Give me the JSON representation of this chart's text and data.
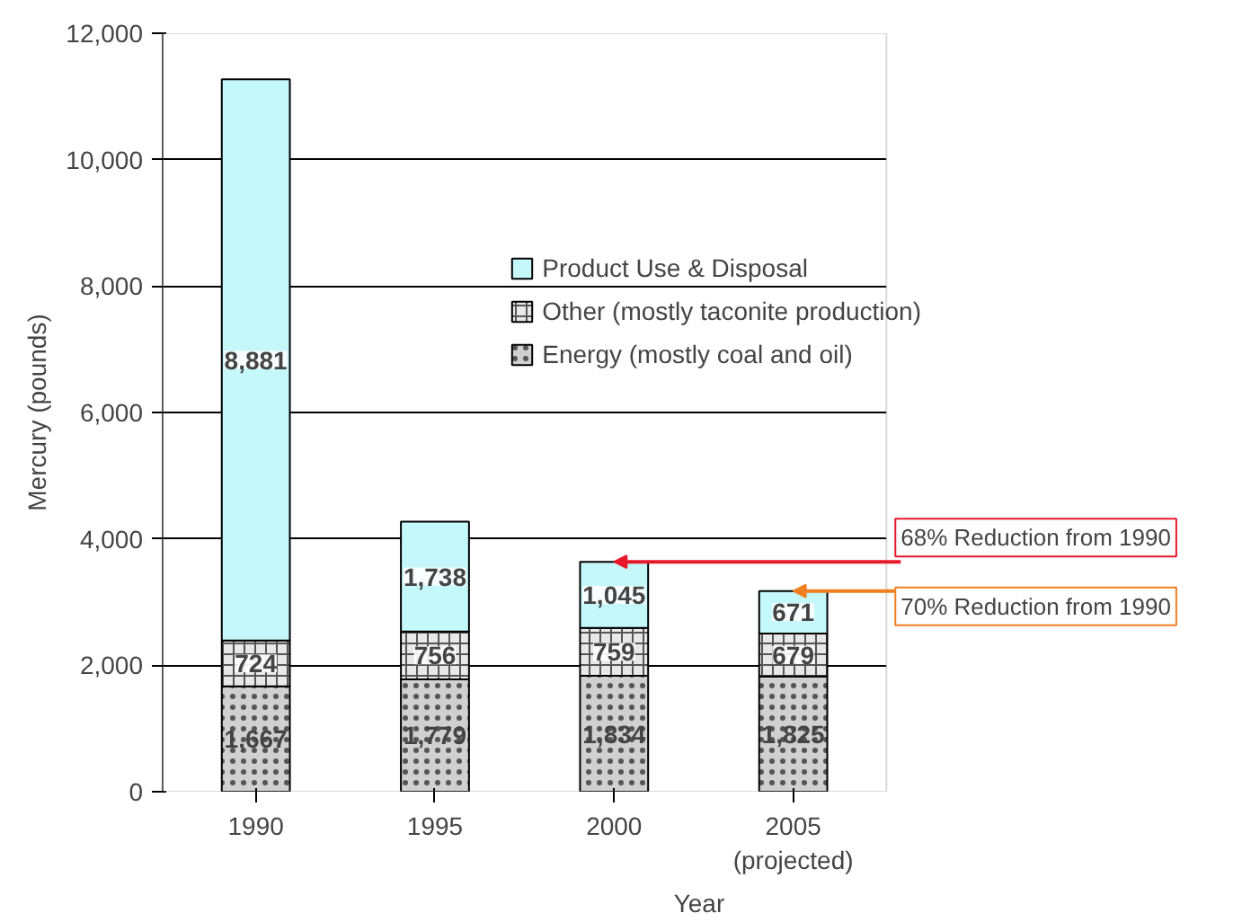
{
  "chart_data": {
    "type": "bar",
    "stacked": true,
    "xlabel": "Year",
    "ylabel": "Mercury (pounds)",
    "categories": [
      "1990",
      "1995",
      "2000",
      "2005\n(projected)"
    ],
    "series": [
      {
        "name": "Energy (mostly coal and oil)",
        "color": "#d0d0d0",
        "values": [
          1667,
          1779,
          1834,
          1825
        ],
        "value_labels": [
          "1,667",
          "1,779",
          "1,834",
          "1,825"
        ]
      },
      {
        "name": "Other (mostly taconite production)",
        "color": "#e8e8e8",
        "values": [
          724,
          756,
          759,
          679
        ],
        "value_labels": [
          "724",
          "756",
          "759",
          "679"
        ]
      },
      {
        "name": "Product Use & Disposal",
        "color": "#c4f8fb",
        "values": [
          8881,
          1738,
          1045,
          671
        ],
        "value_labels": [
          "8,881",
          "1,738",
          "1,045",
          "671"
        ]
      }
    ],
    "ylim": [
      0,
      12000
    ],
    "yticks": [
      {
        "value": 0,
        "label": "0"
      },
      {
        "value": 2000,
        "label": "2,000"
      },
      {
        "value": 4000,
        "label": "4,000"
      },
      {
        "value": 6000,
        "label": "6,000"
      },
      {
        "value": 8000,
        "label": "8,000"
      },
      {
        "value": 10000,
        "label": "10,000"
      },
      {
        "value": 12000,
        "label": "12,000"
      }
    ],
    "grid": "y",
    "legend": "top right",
    "annotations": [
      {
        "text": "68% Reduction from 1990",
        "x": "2000",
        "y": 3638
      },
      {
        "text": "70% Reduction from 1990",
        "x": "2005\n(projected)",
        "y": 3175
      }
    ]
  }
}
